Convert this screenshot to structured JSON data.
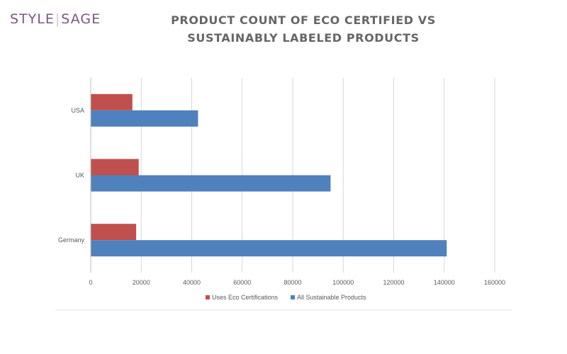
{
  "logo": {
    "part1": "STYLE",
    "part2": "SAGE"
  },
  "chart_data": {
    "type": "bar",
    "orientation": "horizontal",
    "title_lines": [
      "PRODUCT COUNT OF ECO CERTIFIED VS",
      "SUSTAINABLY LABELED PRODUCTS"
    ],
    "categories": [
      "USA",
      "UK",
      "Germany"
    ],
    "series": [
      {
        "name": "Uses Eco Certifications",
        "values": [
          16500,
          19000,
          18000
        ],
        "color": "#c0504d"
      },
      {
        "name": "All Sustainable Products",
        "values": [
          42500,
          95000,
          141000
        ],
        "color": "#4f81bd"
      }
    ],
    "xlim": [
      0,
      160000
    ],
    "xticks": [
      0,
      20000,
      40000,
      60000,
      80000,
      100000,
      120000,
      140000,
      160000
    ],
    "xtick_labels": [
      "0",
      "20000",
      "40000",
      "60000",
      "80000",
      "100000",
      "120000",
      "140000",
      "160000"
    ],
    "xlabel": "",
    "ylabel": "",
    "grid": true,
    "legend_position": "bottom",
    "colors": {
      "gridline": "#d9d9d9",
      "axis": "#bfbfbf",
      "text": "#595959"
    }
  }
}
